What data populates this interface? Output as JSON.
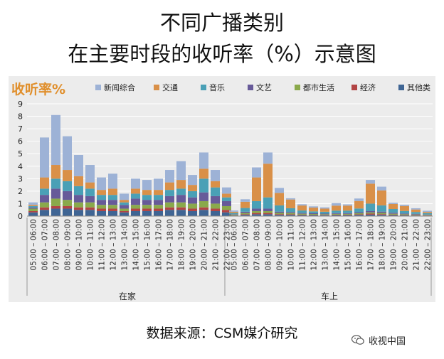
{
  "header": {
    "title_line1": "不同广播类别",
    "title_line2": "在主要时段的收听率（%）示意图"
  },
  "footer": {
    "source": "数据来源：CSM媒介研究",
    "watermark": "收视中国"
  },
  "colors": {
    "新闻综合": "#9db2d6",
    "交通": "#d99048",
    "音乐": "#4aa0b6",
    "文艺": "#675a99",
    "都市生活": "#8aa94b",
    "经济": "#b24444",
    "其他类": "#3f6594",
    "ylabel": "#e08f2c"
  },
  "chart_data": {
    "type": "bar",
    "stacked": true,
    "ylabel": "收听率%",
    "ylim": [
      0,
      9
    ],
    "yticks": [
      0,
      1,
      2,
      3,
      4,
      5,
      6,
      7,
      8,
      9
    ],
    "grid": true,
    "legend_position": "top",
    "groups": [
      "在家",
      "车上"
    ],
    "categories": [
      "05:00 – 06:00",
      "06:00 – 07:00",
      "07:00 – 08:00",
      "08:00 – 09:00",
      "09:00 – 10:00",
      "10:00 – 11:00",
      "11:00 – 12:00",
      "12:00 – 13:00",
      "13:00 – 14:00",
      "14:00 – 15:00",
      "15:00 – 16:00",
      "16:00 – 17:00",
      "17:00 – 18:00",
      "18:00 – 19:00",
      "19:00 – 20:00",
      "20:00 – 21:00",
      "21:00 – 22:00",
      "22:00 – 23:00"
    ],
    "series": [
      {
        "name": "其他类",
        "home": [
          0.3,
          0.5,
          0.6,
          0.6,
          0.5,
          0.5,
          0.4,
          0.4,
          0.3,
          0.4,
          0.4,
          0.4,
          0.5,
          0.5,
          0.4,
          0.5,
          0.4,
          0.3
        ],
        "car": [
          0.05,
          0.1,
          0.15,
          0.15,
          0.1,
          0.1,
          0.08,
          0.08,
          0.07,
          0.08,
          0.08,
          0.1,
          0.12,
          0.1,
          0.08,
          0.06,
          0.05,
          0.04
        ]
      },
      {
        "name": "经济",
        "home": [
          0.1,
          0.2,
          0.2,
          0.2,
          0.2,
          0.2,
          0.2,
          0.2,
          0.1,
          0.2,
          0.2,
          0.2,
          0.2,
          0.2,
          0.2,
          0.2,
          0.2,
          0.2
        ],
        "car": [
          0.02,
          0.05,
          0.1,
          0.1,
          0.06,
          0.05,
          0.04,
          0.03,
          0.03,
          0.04,
          0.04,
          0.05,
          0.08,
          0.06,
          0.04,
          0.03,
          0.03,
          0.02
        ]
      },
      {
        "name": "都市生活",
        "home": [
          0.2,
          0.4,
          0.6,
          0.5,
          0.4,
          0.4,
          0.3,
          0.3,
          0.2,
          0.3,
          0.3,
          0.3,
          0.4,
          0.4,
          0.4,
          0.5,
          0.4,
          0.3
        ],
        "car": [
          0.05,
          0.1,
          0.15,
          0.15,
          0.1,
          0.1,
          0.07,
          0.06,
          0.05,
          0.06,
          0.06,
          0.08,
          0.1,
          0.1,
          0.07,
          0.06,
          0.05,
          0.04
        ]
      },
      {
        "name": "文艺",
        "home": [
          0.1,
          0.6,
          0.8,
          0.7,
          0.6,
          0.5,
          0.4,
          0.4,
          0.3,
          0.5,
          0.4,
          0.4,
          0.5,
          0.6,
          0.5,
          0.7,
          0.6,
          0.4
        ],
        "car": [
          0.03,
          0.1,
          0.2,
          0.2,
          0.1,
          0.08,
          0.06,
          0.06,
          0.05,
          0.06,
          0.06,
          0.08,
          0.1,
          0.1,
          0.08,
          0.06,
          0.05,
          0.03
        ]
      },
      {
        "name": "音乐",
        "home": [
          0.1,
          0.5,
          0.8,
          0.8,
          0.7,
          0.6,
          0.4,
          0.4,
          0.2,
          0.4,
          0.4,
          0.4,
          0.5,
          0.5,
          0.5,
          1.1,
          0.7,
          0.3
        ],
        "car": [
          0.1,
          0.3,
          0.6,
          0.9,
          0.5,
          0.3,
          0.2,
          0.15,
          0.15,
          0.2,
          0.2,
          0.3,
          0.6,
          0.5,
          0.3,
          0.2,
          0.15,
          0.1
        ]
      },
      {
        "name": "交通",
        "home": [
          0.1,
          0.9,
          1.1,
          0.9,
          0.8,
          0.5,
          0.4,
          0.5,
          0.2,
          0.4,
          0.4,
          0.4,
          0.6,
          0.7,
          0.5,
          0.8,
          0.5,
          0.3
        ],
        "car": [
          0.1,
          0.5,
          1.9,
          2.7,
          1.0,
          0.7,
          0.4,
          0.3,
          0.25,
          0.4,
          0.4,
          0.6,
          1.6,
          1.2,
          0.4,
          0.4,
          0.2,
          0.1
        ]
      },
      {
        "name": "新闻综合",
        "home": [
          0.2,
          3.2,
          4.0,
          2.7,
          1.7,
          1.4,
          1.0,
          1.2,
          0.5,
          0.8,
          0.8,
          0.9,
          1.0,
          1.5,
          0.8,
          1.3,
          0.9,
          0.5
        ],
        "car": [
          0.1,
          0.2,
          0.8,
          0.9,
          0.4,
          0.1,
          0.1,
          0.1,
          0.1,
          0.2,
          0.1,
          0.2,
          0.3,
          0.3,
          0.1,
          0.1,
          0.1,
          0.1
        ]
      }
    ],
    "legend": [
      "新闻综合",
      "交通",
      "音乐",
      "文艺",
      "都市生活",
      "经济",
      "其他类"
    ]
  }
}
